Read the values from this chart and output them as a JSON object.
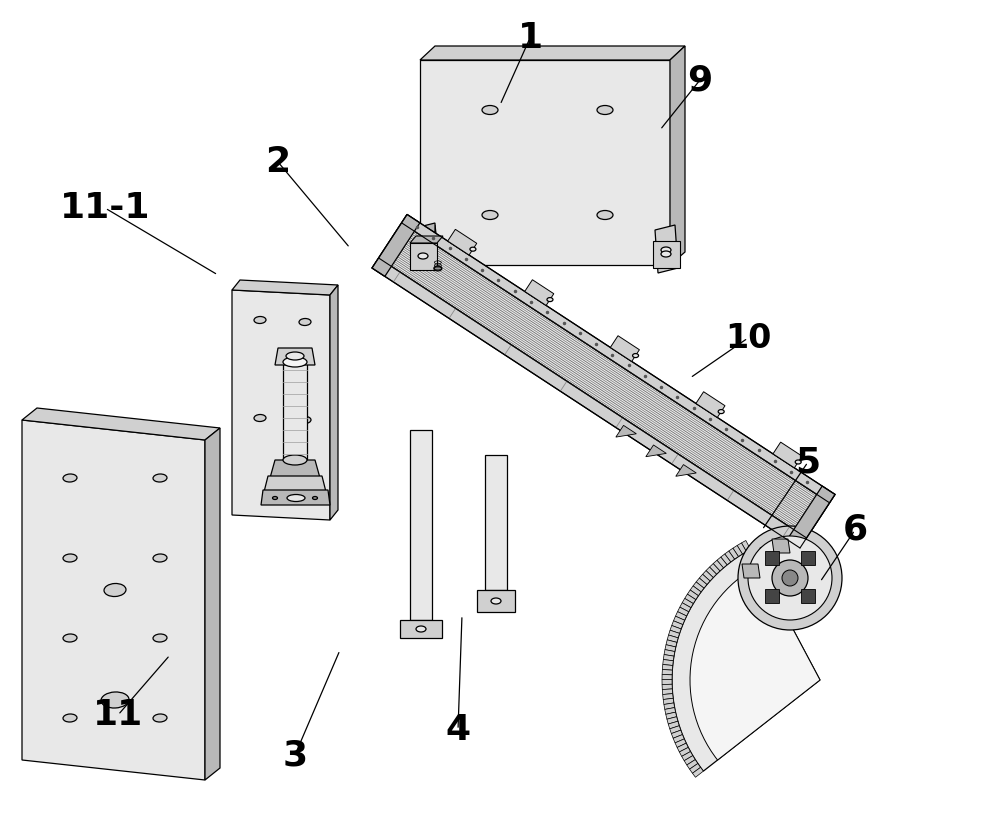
{
  "bg_color": "#ffffff",
  "lc": "#000000",
  "lc_gray": "#555555",
  "fill_white": "#f5f5f5",
  "fill_light": "#e8e8e8",
  "fill_mid": "#d0d0d0",
  "fill_dark": "#b8b8b8",
  "fill_vdark": "#909090",
  "label_specs": [
    [
      "1",
      530,
      38,
      500,
      105,
      26
    ],
    [
      "9",
      700,
      80,
      660,
      130,
      26
    ],
    [
      "2",
      278,
      162,
      350,
      248,
      26
    ],
    [
      "10",
      748,
      338,
      690,
      378,
      24
    ],
    [
      "5",
      808,
      462,
      762,
      530,
      26
    ],
    [
      "6",
      855,
      530,
      820,
      582,
      26
    ],
    [
      "3",
      295,
      755,
      340,
      650,
      26
    ],
    [
      "4",
      458,
      730,
      462,
      615,
      26
    ],
    [
      "11",
      118,
      715,
      170,
      655,
      26
    ],
    [
      "11-1",
      105,
      208,
      218,
      275,
      26
    ]
  ]
}
